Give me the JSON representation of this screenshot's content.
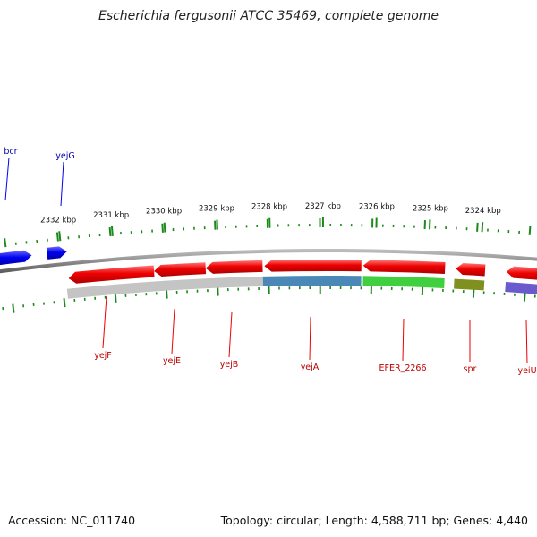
{
  "title": "Escherichia fergusonii ATCC 35469, complete genome",
  "footer": {
    "accession": "Accession: NC_011740",
    "stats": "Topology: circular; Length: 4,588,711 bp; Genes: 4,440"
  },
  "colors": {
    "forward_gene": "#0000ee",
    "reverse_gene": "#ee0000",
    "forward_label": "#0000aa",
    "reverse_label": "#bb0000",
    "tick": "#1a8a1a",
    "backbone": "#888888"
  },
  "scale_ticks": [
    {
      "kbp": 2332,
      "label": "2332 kbp"
    },
    {
      "kbp": 2331,
      "label": "2331 kbp"
    },
    {
      "kbp": 2330,
      "label": "2330 kbp"
    },
    {
      "kbp": 2329,
      "label": "2329 kbp"
    },
    {
      "kbp": 2328,
      "label": "2328 kbp"
    },
    {
      "kbp": 2327,
      "label": "2327 kbp"
    },
    {
      "kbp": 2326,
      "label": "2326 kbp"
    },
    {
      "kbp": 2325,
      "label": "2325 kbp"
    },
    {
      "kbp": 2324,
      "label": "2324 kbp"
    }
  ],
  "forward_genes": [
    {
      "name": "bcr"
    },
    {
      "name": "yejG"
    }
  ],
  "reverse_genes": [
    {
      "name": "yejF"
    },
    {
      "name": "yejE"
    },
    {
      "name": "yejB"
    },
    {
      "name": "yejA"
    },
    {
      "name": "EFER_2266"
    },
    {
      "name": "spr"
    },
    {
      "name": "yeiU"
    }
  ],
  "annotation_bands": [
    {
      "color": "#c4c4c4"
    },
    {
      "color": "#4a88b8"
    },
    {
      "color": "#3fcf3f"
    },
    {
      "color": "#7f8f20"
    },
    {
      "color": "#6a5acd"
    }
  ]
}
